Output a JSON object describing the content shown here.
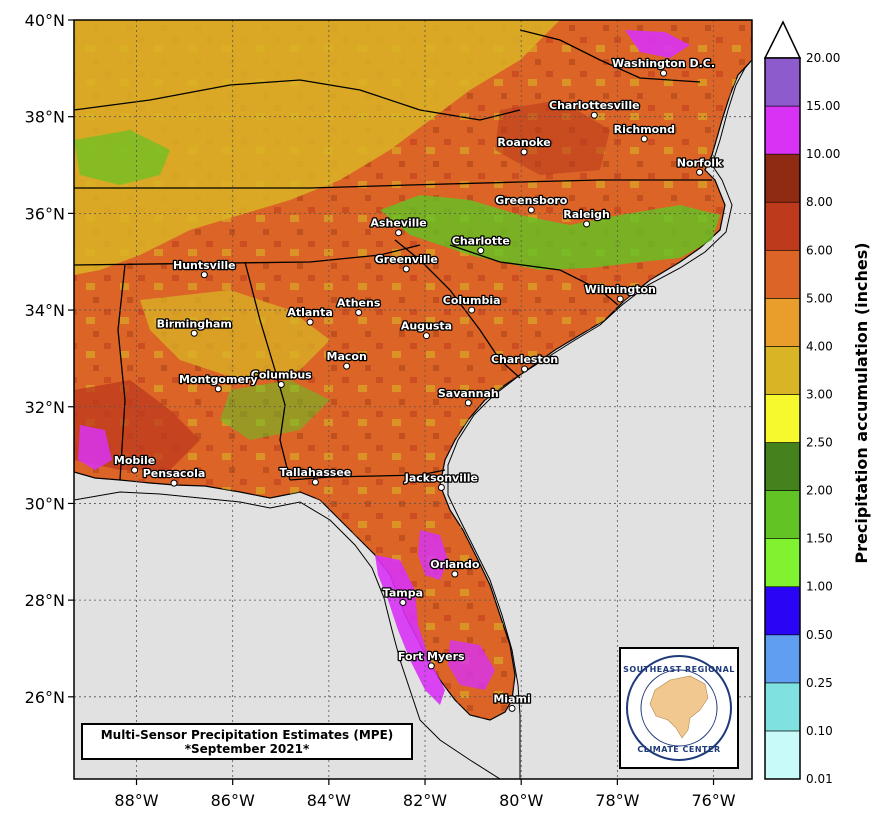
{
  "map": {
    "title_line1": "Multi-Sensor Precipitation Estimates (MPE)",
    "title_line2": "*September 2021*",
    "lat_ticks": [
      "40°N",
      "38°N",
      "36°N",
      "34°N",
      "32°N",
      "30°N",
      "28°N",
      "26°N"
    ],
    "lon_ticks": [
      "88°W",
      "86°W",
      "84°W",
      "82°W",
      "80°W",
      "78°W",
      "76°W"
    ],
    "extent": {
      "lon_min": -89.3,
      "lon_max": -75.2,
      "lat_min": 24.3,
      "lat_max": 40.0
    },
    "ocean_color": "#e1e1e1",
    "cities": [
      {
        "name": "Washington D.C.",
        "lon": -77.04,
        "lat": 38.9
      },
      {
        "name": "Charlottesville",
        "lon": -78.48,
        "lat": 38.03
      },
      {
        "name": "Richmond",
        "lon": -77.44,
        "lat": 37.54
      },
      {
        "name": "Roanoke",
        "lon": -79.94,
        "lat": 37.27
      },
      {
        "name": "Norfolk",
        "lon": -76.29,
        "lat": 36.85
      },
      {
        "name": "Greensboro",
        "lon": -79.79,
        "lat": 36.07
      },
      {
        "name": "Asheville",
        "lon": -82.55,
        "lat": 35.6
      },
      {
        "name": "Raleigh",
        "lon": -78.64,
        "lat": 35.78
      },
      {
        "name": "Charlotte",
        "lon": -80.84,
        "lat": 35.23
      },
      {
        "name": "Greenville",
        "lon": -82.39,
        "lat": 34.85
      },
      {
        "name": "Huntsville",
        "lon": -86.59,
        "lat": 34.73
      },
      {
        "name": "Wilmington",
        "lon": -77.94,
        "lat": 34.23
      },
      {
        "name": "Athens",
        "lon": -83.38,
        "lat": 33.95
      },
      {
        "name": "Columbia",
        "lon": -81.03,
        "lat": 34.0
      },
      {
        "name": "Atlanta",
        "lon": -84.39,
        "lat": 33.75
      },
      {
        "name": "Birmingham",
        "lon": -86.8,
        "lat": 33.52
      },
      {
        "name": "Augusta",
        "lon": -81.97,
        "lat": 33.47
      },
      {
        "name": "Macon",
        "lon": -83.63,
        "lat": 32.84
      },
      {
        "name": "Charleston",
        "lon": -79.93,
        "lat": 32.78
      },
      {
        "name": "Columbus",
        "lon": -84.99,
        "lat": 32.46
      },
      {
        "name": "Montgomery",
        "lon": -86.3,
        "lat": 32.37
      },
      {
        "name": "Savannah",
        "lon": -81.1,
        "lat": 32.08
      },
      {
        "name": "Mobile",
        "lon": -88.04,
        "lat": 30.69
      },
      {
        "name": "Pensacola",
        "lon": -87.22,
        "lat": 30.42
      },
      {
        "name": "Tallahassee",
        "lon": -84.28,
        "lat": 30.44
      },
      {
        "name": "Jacksonville",
        "lon": -81.66,
        "lat": 30.33
      },
      {
        "name": "Orlando",
        "lon": -81.38,
        "lat": 28.54
      },
      {
        "name": "Tampa",
        "lon": -82.46,
        "lat": 27.95
      },
      {
        "name": "Fort Myers",
        "lon": -81.87,
        "lat": 26.64
      },
      {
        "name": "Miami",
        "lon": -80.19,
        "lat": 25.76
      }
    ]
  },
  "colorbar": {
    "title": "Precipitation accumulation (inches)",
    "levels": [
      "0.01",
      "0.10",
      "0.25",
      "0.50",
      "1.00",
      "1.50",
      "2.00",
      "2.50",
      "3.00",
      "4.00",
      "5.00",
      "6.00",
      "8.00",
      "10.00",
      "15.00",
      "20.00"
    ],
    "colors": [
      "#c9fafa",
      "#7fe2e1",
      "#5f9ef0",
      "#2a05f5",
      "#80f22f",
      "#62c324",
      "#43821c",
      "#f6f92e",
      "#d9b425",
      "#e99d2b",
      "#dc6426",
      "#bd3a1d",
      "#8e2b12",
      "#d832f5",
      "#8d5bcc"
    ]
  },
  "logo": {
    "top_text": "SOUTHEAST REGIONAL",
    "bottom_text": "CLIMATE CENTER"
  }
}
